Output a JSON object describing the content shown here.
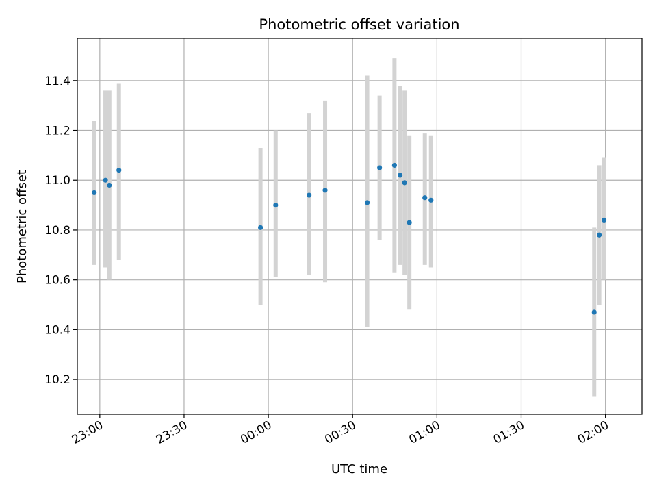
{
  "chart_data": {
    "type": "scatter",
    "title": "Photometric offset variation",
    "xlabel": "UTC time",
    "ylabel": "Photometric offset",
    "x_unit": "minutes",
    "x_ticks": [
      {
        "value": 0,
        "label": "23:00"
      },
      {
        "value": 30,
        "label": "23:30"
      },
      {
        "value": 60,
        "label": "00:00"
      },
      {
        "value": 90,
        "label": "00:30"
      },
      {
        "value": 120,
        "label": "01:00"
      },
      {
        "value": 150,
        "label": "01:30"
      },
      {
        "value": 180,
        "label": "02:00"
      }
    ],
    "xlim": [
      -8,
      193
    ],
    "y_ticks": [
      10.2,
      10.4,
      10.6,
      10.8,
      11.0,
      11.2,
      11.4
    ],
    "ylim": [
      10.06,
      11.57
    ],
    "grid": true,
    "marker_color": "#1f77b4",
    "errorbar_color": "#d3d3d3",
    "series": [
      {
        "points": [
          {
            "x": -2.0,
            "y": 10.95,
            "lo": 10.66,
            "hi": 11.24
          },
          {
            "x": 2.0,
            "y": 11.0,
            "lo": 10.65,
            "hi": 11.36
          },
          {
            "x": 3.4,
            "y": 10.98,
            "lo": 10.6,
            "hi": 11.36
          },
          {
            "x": 6.8,
            "y": 11.04,
            "lo": 10.68,
            "hi": 11.39
          },
          {
            "x": 57.2,
            "y": 10.81,
            "lo": 10.5,
            "hi": 11.13
          },
          {
            "x": 62.6,
            "y": 10.9,
            "lo": 10.61,
            "hi": 11.2
          },
          {
            "x": 74.5,
            "y": 10.94,
            "lo": 10.62,
            "hi": 11.27
          },
          {
            "x": 80.2,
            "y": 10.96,
            "lo": 10.59,
            "hi": 11.32
          },
          {
            "x": 95.2,
            "y": 10.91,
            "lo": 10.41,
            "hi": 11.42
          },
          {
            "x": 99.6,
            "y": 11.05,
            "lo": 10.76,
            "hi": 11.34
          },
          {
            "x": 104.9,
            "y": 11.06,
            "lo": 10.63,
            "hi": 11.49
          },
          {
            "x": 106.9,
            "y": 11.02,
            "lo": 10.66,
            "hi": 11.38
          },
          {
            "x": 108.5,
            "y": 10.99,
            "lo": 10.62,
            "hi": 11.36
          },
          {
            "x": 110.2,
            "y": 10.83,
            "lo": 10.48,
            "hi": 11.18
          },
          {
            "x": 115.7,
            "y": 10.93,
            "lo": 10.66,
            "hi": 11.19
          },
          {
            "x": 117.9,
            "y": 10.92,
            "lo": 10.65,
            "hi": 11.18
          },
          {
            "x": 176.0,
            "y": 10.47,
            "lo": 10.13,
            "hi": 10.81
          },
          {
            "x": 177.8,
            "y": 10.78,
            "lo": 10.5,
            "hi": 11.06
          },
          {
            "x": 179.5,
            "y": 10.84,
            "lo": 10.6,
            "hi": 11.09
          }
        ]
      }
    ]
  }
}
